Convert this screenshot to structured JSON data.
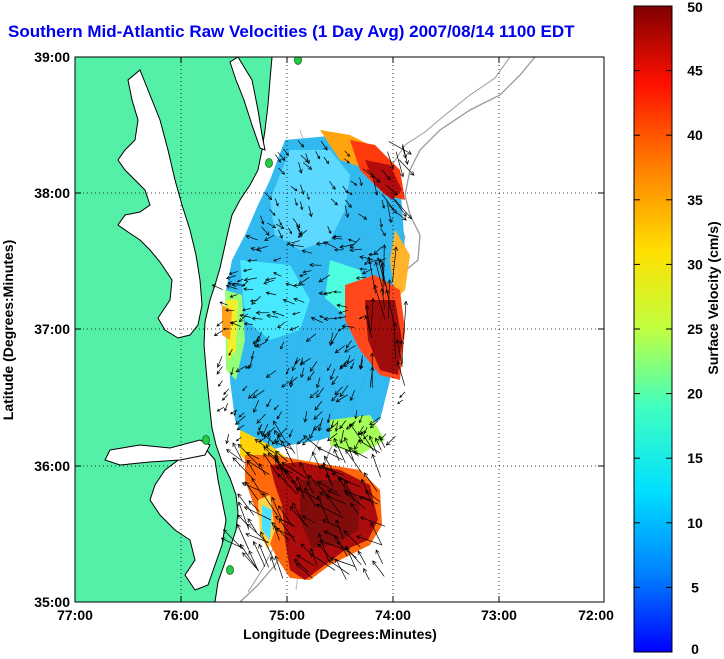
{
  "title": "Southern Mid-Atlantic Raw Velocities (1 Day Avg) 2007/08/14 1100 EDT",
  "map": {
    "xlabel": "Longitude (Degrees:Minutes)",
    "ylabel": "Latitude (Degrees:Minutes)",
    "xticks": [
      "77:00",
      "76:00",
      "75:00",
      "74:00",
      "73:00",
      "72:00"
    ],
    "yticks": [
      "39:00",
      "38:00",
      "37:00",
      "36:00",
      "35:00"
    ],
    "xlim": [
      -77,
      -72
    ],
    "ylim": [
      35,
      39
    ],
    "grid": "dotted",
    "colors": {
      "land": "#55f0a8",
      "water": "#ffffff",
      "coastline": "#000000",
      "bathymetry": "#999999",
      "station": "#22cc44"
    }
  },
  "colorbar": {
    "label": "Surface Velocity (cm/s)",
    "ticks": [
      "50",
      "45",
      "40",
      "35",
      "30",
      "25",
      "20",
      "15",
      "10",
      "5",
      "0"
    ],
    "range": [
      0,
      50
    ],
    "colormap": "jet"
  }
}
